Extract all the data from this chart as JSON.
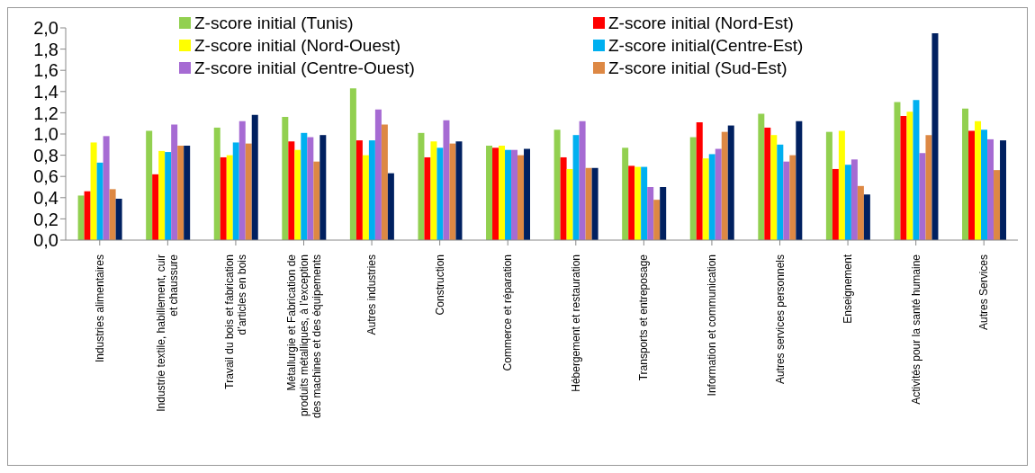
{
  "chart_data": {
    "type": "bar",
    "categories": [
      "Industries alimentaires",
      "Industrie textile, habillement, cuir et chaussure",
      "Travail du bois et fabrication d’articles en bois",
      "Métallurgie et Fabrication de produits métalliques, à l’exception des machines et des équipements",
      "Autres industries",
      "Construction",
      "Commerce et réparation",
      "Hébergement et restauration",
      "Transports et entreposage",
      "Information et communication",
      "Autres services personnels",
      "Enseignement",
      "Activités pour la santé humaine",
      "Autres Services"
    ],
    "series": [
      {
        "name": "Z-score initial (Tunis)",
        "color": "#92d050",
        "values": [
          0.42,
          1.03,
          1.06,
          1.16,
          1.43,
          1.01,
          0.89,
          1.04,
          0.87,
          0.97,
          1.19,
          1.02,
          1.3,
          1.24
        ]
      },
      {
        "name": "Z-score initial (Nord-Est)",
        "color": "#ff0000",
        "values": [
          0.46,
          0.62,
          0.78,
          0.93,
          0.94,
          0.78,
          0.87,
          0.78,
          0.7,
          1.11,
          1.06,
          0.67,
          1.17,
          1.03
        ]
      },
      {
        "name": "Z-score initial (Nord-Ouest)",
        "color": "#ffff00",
        "values": [
          0.92,
          0.84,
          0.8,
          0.85,
          0.8,
          0.93,
          0.89,
          0.67,
          0.69,
          0.77,
          0.99,
          1.03,
          1.21,
          1.12
        ]
      },
      {
        "name": "Z-score initial(Centre-Est)",
        "color": "#00b0f0",
        "values": [
          0.73,
          0.83,
          0.92,
          1.01,
          0.94,
          0.87,
          0.85,
          0.99,
          0.69,
          0.81,
          0.9,
          0.71,
          1.32,
          1.04
        ]
      },
      {
        "name": "Z-score initial (Centre-Ouest)",
        "color": "#a66bd3",
        "values": [
          0.98,
          1.09,
          1.12,
          0.97,
          1.23,
          1.13,
          0.85,
          1.12,
          0.5,
          0.86,
          0.74,
          0.76,
          0.82,
          0.95
        ]
      },
      {
        "name": "Z-score initial (Sud-Est)",
        "color": "#dd8844",
        "values": [
          0.48,
          0.89,
          0.91,
          0.74,
          1.09,
          0.91,
          0.8,
          0.68,
          0.38,
          1.02,
          0.8,
          0.51,
          0.99,
          0.66
        ]
      },
      {
        "color": "#002060",
        "values": [
          0.39,
          0.89,
          1.18,
          0.99,
          0.63,
          0.93,
          0.86,
          0.68,
          0.5,
          1.08,
          1.12,
          0.43,
          1.95,
          0.94
        ]
      }
    ],
    "ylim": [
      0,
      2
    ],
    "yticks": [
      {
        "value": 0,
        "label": "0,0"
      },
      {
        "value": 0.2,
        "label": "0,2"
      },
      {
        "value": 0.4,
        "label": "0,4"
      },
      {
        "value": 0.6,
        "label": "0,6"
      },
      {
        "value": 0.8,
        "label": "0,8"
      },
      {
        "value": 1.0,
        "label": "1,0"
      },
      {
        "value": 1.2,
        "label": "1,2"
      },
      {
        "value": 1.4,
        "label": "1,4"
      },
      {
        "value": 1.6,
        "label": "1,6"
      },
      {
        "value": 1.8,
        "label": "1,8"
      },
      {
        "value": 2.0,
        "label": "2,0"
      }
    ],
    "grid": false,
    "legend": "top"
  }
}
